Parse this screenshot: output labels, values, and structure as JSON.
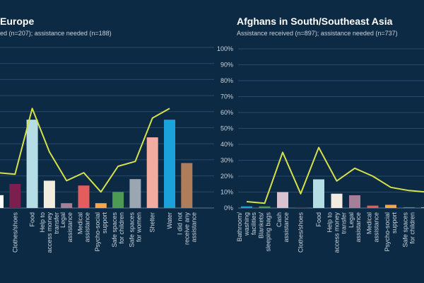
{
  "chart_data": [
    {
      "type": "bar",
      "title": "Europe",
      "subtitle": "ed (n=207); assistance needed (n=188)",
      "categories": [
        "",
        "Clothes/shoes",
        "Food",
        "Help to access money transfer",
        "Legal assistance",
        "Medical assistance",
        "Psycho-social support",
        "Safe spaces for children",
        "Safe spaces for women",
        "Shelter",
        "Water",
        "I did not receive any assistance"
      ],
      "series": [
        {
          "name": "Assistance received",
          "type": "bar",
          "values": [
            8,
            15,
            55,
            17,
            3,
            14,
            3,
            10,
            18,
            44,
            55,
            28
          ]
        },
        {
          "name": "Assistance needed",
          "type": "line",
          "values": [
            22,
            21,
            62,
            35,
            17,
            22,
            10,
            26,
            29,
            56,
            62,
            null
          ]
        }
      ],
      "colors": [
        "#ffffff",
        "#7a1f4e",
        "#b5dde6",
        "#f2ece1",
        "#a57f97",
        "#e35d5d",
        "#f7a64b",
        "#4d9a52",
        "#9aa6b1",
        "#f4aca0",
        "#1ba2da",
        "#b07d5b"
      ],
      "line_color": "#d6e04a",
      "ylim": [
        0,
        100
      ]
    },
    {
      "type": "bar",
      "title": "Afghans in South/Southeast Asia",
      "subtitle": "Assistance received (n=897); assistance needed (n=737)",
      "categories": [
        "Bathroom/ washing facilities",
        "Blankets/ sleeping bags",
        "Cash assistance",
        "Clothes/shoes",
        "Food",
        "Help to access money transfer",
        "Legal assistance",
        "Medical assistance",
        "Psycho-social support",
        "Safe spaces for children",
        "Safe spaces"
      ],
      "series": [
        {
          "name": "Assistance received",
          "type": "bar",
          "values": [
            1,
            1,
            10,
            0.5,
            18,
            9,
            8,
            1.5,
            2,
            0.5,
            0.5
          ]
        },
        {
          "name": "Assistance needed",
          "type": "line",
          "values": [
            4,
            3,
            35,
            9,
            38,
            17,
            25,
            20,
            13,
            11,
            10
          ]
        }
      ],
      "colors": [
        "#1ba2da",
        "#4d9a52",
        "#d8c4d0",
        "#7a1f4e",
        "#b5dde6",
        "#f2ece1",
        "#a57f97",
        "#e35d5d",
        "#f7a64b",
        "#4d9a52",
        "#9aa6b1"
      ],
      "line_color": "#d6e04a",
      "ylim": [
        0,
        100
      ],
      "yticks": [
        "0%",
        "10%",
        "20%",
        "30%",
        "40%",
        "50%",
        "60%",
        "70%",
        "80%",
        "90%",
        "100%"
      ]
    }
  ]
}
